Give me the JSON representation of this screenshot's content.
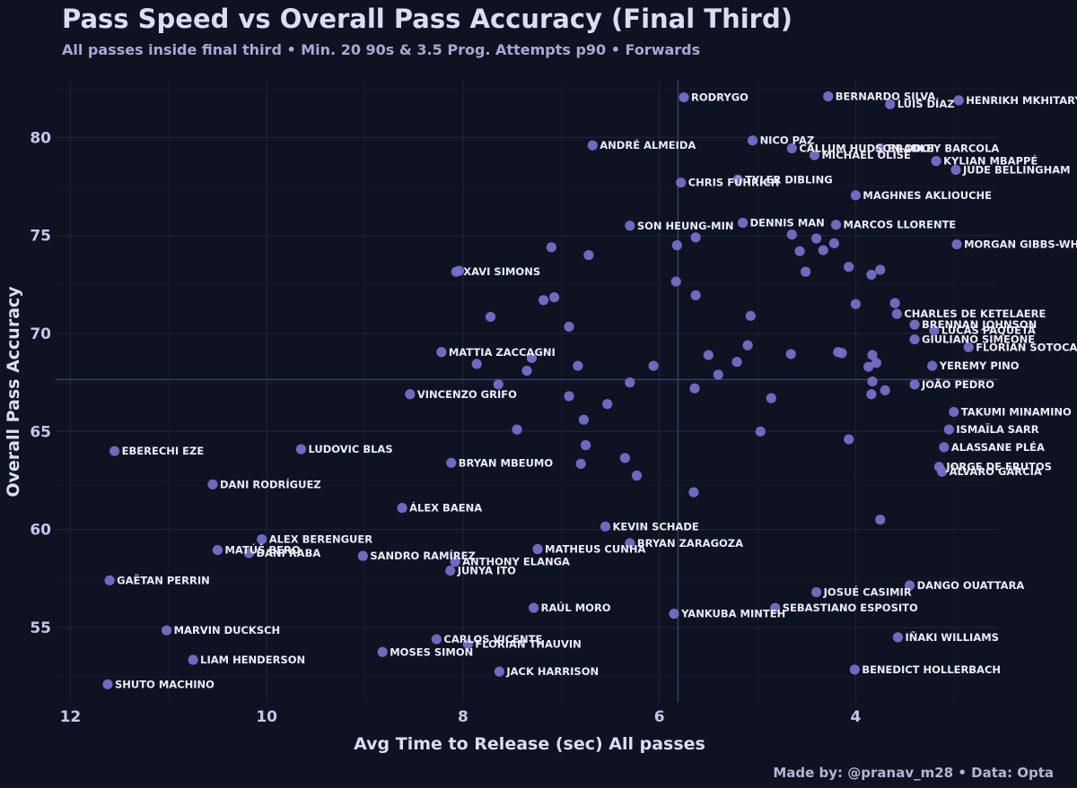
{
  "header": {
    "title": "Pass Speed vs Overall Pass Accuracy (Final Third)",
    "subtitle": "All passes inside final third • Min. 20 90s & 3.5 Prog. Attempts p90 • Forwards"
  },
  "footer": {
    "credit": "Made by: @pranav_m28  •  Data: Opta"
  },
  "colors": {
    "background": "#0f1220",
    "point": "#7b6fcf",
    "grid": "#1c2236",
    "reference_line": "#33405e",
    "text": "#dcdcf5"
  },
  "chart_data": {
    "type": "scatter",
    "xlabel": "Avg Time to Release (sec) All passes",
    "ylabel": "Overall Pass Accuracy",
    "x_reversed": true,
    "xlim": [
      12.15,
      2.55
    ],
    "ylim": [
      51.2,
      82.9
    ],
    "xticks": [
      12,
      10,
      8,
      6,
      4
    ],
    "yticks": [
      55,
      60,
      65,
      70,
      75,
      80
    ],
    "grid": true,
    "reference_lines": {
      "x": 5.81,
      "y": 67.65
    },
    "points": [
      {
        "x": 5.75,
        "y": 82.05,
        "label": "RODRYGO"
      },
      {
        "x": 4.28,
        "y": 82.1,
        "label": "BERNARDO SILVA"
      },
      {
        "x": 3.65,
        "y": 81.7,
        "label": "LUIS DÍAZ"
      },
      {
        "x": 2.95,
        "y": 81.9,
        "label": "HENRIKH MKHITARYAN"
      },
      {
        "x": 5.05,
        "y": 79.85,
        "label": "NICO PAZ"
      },
      {
        "x": 4.65,
        "y": 79.45,
        "label": "CALLUM HUDSON-ODOI"
      },
      {
        "x": 3.75,
        "y": 79.45,
        "label": "BRADLEY BARCOLA"
      },
      {
        "x": 4.42,
        "y": 79.1,
        "label": "MICHAEL OLISE"
      },
      {
        "x": 6.68,
        "y": 79.6,
        "label": "ANDRÉ ALMEIDA"
      },
      {
        "x": 3.18,
        "y": 78.8,
        "label": "KYLIAN MBAPPÉ"
      },
      {
        "x": 2.98,
        "y": 78.35,
        "label": "JUDE BELLINGHAM"
      },
      {
        "x": 5.78,
        "y": 77.7,
        "label": "CHRIS FÜHRICH"
      },
      {
        "x": 5.2,
        "y": 77.85,
        "label": "TYLER DIBLING"
      },
      {
        "x": 4.0,
        "y": 77.05,
        "label": "MAGHNES AKLIOUCHE"
      },
      {
        "x": 6.3,
        "y": 75.5,
        "label": "SON HEUNG-MIN"
      },
      {
        "x": 5.15,
        "y": 75.65,
        "label": "DENNIS MAN"
      },
      {
        "x": 4.2,
        "y": 75.55,
        "label": "MARCOS LLORENTE"
      },
      {
        "x": 2.97,
        "y": 74.55,
        "label": "MORGAN GIBBS-WHITE"
      },
      {
        "x": 8.07,
        "y": 73.15,
        "label": "XAVI SIMONS"
      },
      {
        "x": 3.58,
        "y": 71.0,
        "label": "CHARLES DE KETELAERE"
      },
      {
        "x": 3.4,
        "y": 70.45,
        "label": "BRENNAN JOHNSON"
      },
      {
        "x": 3.2,
        "y": 70.15,
        "label": "LUCAS PAQUETÁ"
      },
      {
        "x": 3.4,
        "y": 69.7,
        "label": "GIULIANO SIMEONE"
      },
      {
        "x": 2.85,
        "y": 69.3,
        "label": "FLORIAN SOTOCA"
      },
      {
        "x": 8.22,
        "y": 69.05,
        "label": "MATTIA ZACCAGNI"
      },
      {
        "x": 3.22,
        "y": 68.35,
        "label": "YEREMY PINO"
      },
      {
        "x": 3.4,
        "y": 67.4,
        "label": "JOÃO PEDRO"
      },
      {
        "x": 8.54,
        "y": 66.9,
        "label": "VINCENZO GRIFO"
      },
      {
        "x": 3.0,
        "y": 66.0,
        "label": "TAKUMI MINAMINO"
      },
      {
        "x": 3.05,
        "y": 65.1,
        "label": "ISMAÏLA SARR"
      },
      {
        "x": 3.1,
        "y": 64.2,
        "label": "ALASSANE PLÉA"
      },
      {
        "x": 11.55,
        "y": 64.0,
        "label": "EBERECHI EZE"
      },
      {
        "x": 9.65,
        "y": 64.1,
        "label": "LUDOVIC BLAS"
      },
      {
        "x": 8.12,
        "y": 63.4,
        "label": "BRYAN MBEUMO"
      },
      {
        "x": 3.15,
        "y": 63.2,
        "label": "JORGE DE FRUTOS"
      },
      {
        "x": 3.12,
        "y": 62.95,
        "label": "ÁLVARO GARCÍA"
      },
      {
        "x": 10.55,
        "y": 62.3,
        "label": "DANI RODRÍGUEZ"
      },
      {
        "x": 8.62,
        "y": 61.1,
        "label": "ÁLEX BAENA"
      },
      {
        "x": 6.55,
        "y": 60.15,
        "label": "KEVIN SCHADE"
      },
      {
        "x": 10.05,
        "y": 59.5,
        "label": "ALEX BERENGUER"
      },
      {
        "x": 6.3,
        "y": 59.3,
        "label": "BRYAN ZARAGOZA"
      },
      {
        "x": 7.24,
        "y": 59.0,
        "label": "MATHEUS CUNHA"
      },
      {
        "x": 10.5,
        "y": 58.95,
        "label": "MATÚŠ BERO"
      },
      {
        "x": 10.18,
        "y": 58.8,
        "label": "DANI RABA"
      },
      {
        "x": 9.02,
        "y": 58.65,
        "label": "SANDRO RAMÍREZ"
      },
      {
        "x": 8.08,
        "y": 58.35,
        "label": "ANTHONY ELANGA"
      },
      {
        "x": 8.13,
        "y": 57.9,
        "label": "JUNYA ITO"
      },
      {
        "x": 11.6,
        "y": 57.4,
        "label": "GAËTAN PERRIN"
      },
      {
        "x": 3.45,
        "y": 57.15,
        "label": "DANGO OUATTARA"
      },
      {
        "x": 4.4,
        "y": 56.8,
        "label": "JOSUÉ CASIMIR"
      },
      {
        "x": 7.28,
        "y": 56.0,
        "label": "RAÚL MORO"
      },
      {
        "x": 4.82,
        "y": 56.0,
        "label": "SEBASTIANO ESPOSITO"
      },
      {
        "x": 5.85,
        "y": 55.7,
        "label": "YANKUBA MINTEH"
      },
      {
        "x": 11.02,
        "y": 54.85,
        "label": "MARVIN DUCKSCH"
      },
      {
        "x": 8.27,
        "y": 54.4,
        "label": "CARLOS VICENTE"
      },
      {
        "x": 7.95,
        "y": 54.15,
        "label": "FLORIAN THAUVIN"
      },
      {
        "x": 3.57,
        "y": 54.5,
        "label": "IÑAKI WILLIAMS"
      },
      {
        "x": 8.82,
        "y": 53.75,
        "label": "MOSES SIMON"
      },
      {
        "x": 10.75,
        "y": 53.35,
        "label": "LIAM HENDERSON"
      },
      {
        "x": 7.63,
        "y": 52.75,
        "label": "JACK HARRISON"
      },
      {
        "x": 4.01,
        "y": 52.85,
        "label": "BENEDICT HOLLERBACH"
      },
      {
        "x": 11.62,
        "y": 52.1,
        "label": "SHUTO MACHINO"
      },
      {
        "x": 8.04,
        "y": 73.2
      },
      {
        "x": 7.1,
        "y": 74.4
      },
      {
        "x": 6.72,
        "y": 74.0
      },
      {
        "x": 5.82,
        "y": 74.5
      },
      {
        "x": 5.63,
        "y": 74.9
      },
      {
        "x": 4.65,
        "y": 75.05
      },
      {
        "x": 4.4,
        "y": 74.85
      },
      {
        "x": 4.57,
        "y": 74.2
      },
      {
        "x": 4.33,
        "y": 74.25
      },
      {
        "x": 4.22,
        "y": 74.6
      },
      {
        "x": 4.51,
        "y": 73.15
      },
      {
        "x": 4.07,
        "y": 73.4
      },
      {
        "x": 3.84,
        "y": 73.0
      },
      {
        "x": 3.75,
        "y": 73.25
      },
      {
        "x": 5.83,
        "y": 72.65
      },
      {
        "x": 7.07,
        "y": 71.85
      },
      {
        "x": 7.18,
        "y": 71.7
      },
      {
        "x": 5.63,
        "y": 71.95
      },
      {
        "x": 7.72,
        "y": 70.85
      },
      {
        "x": 6.92,
        "y": 70.35
      },
      {
        "x": 5.07,
        "y": 70.9
      },
      {
        "x": 4.0,
        "y": 71.5
      },
      {
        "x": 3.6,
        "y": 71.55
      },
      {
        "x": 5.1,
        "y": 69.4
      },
      {
        "x": 5.5,
        "y": 68.9
      },
      {
        "x": 4.66,
        "y": 68.95
      },
      {
        "x": 4.18,
        "y": 69.05
      },
      {
        "x": 4.14,
        "y": 69.0
      },
      {
        "x": 3.83,
        "y": 68.9
      },
      {
        "x": 3.79,
        "y": 68.5
      },
      {
        "x": 3.87,
        "y": 68.3
      },
      {
        "x": 7.3,
        "y": 68.75
      },
      {
        "x": 7.86,
        "y": 68.45
      },
      {
        "x": 6.83,
        "y": 68.35
      },
      {
        "x": 5.21,
        "y": 68.55
      },
      {
        "x": 6.06,
        "y": 68.35
      },
      {
        "x": 7.35,
        "y": 68.1
      },
      {
        "x": 5.4,
        "y": 67.9
      },
      {
        "x": 6.3,
        "y": 67.5
      },
      {
        "x": 7.64,
        "y": 67.4
      },
      {
        "x": 3.83,
        "y": 67.55
      },
      {
        "x": 5.64,
        "y": 67.2
      },
      {
        "x": 3.7,
        "y": 67.1
      },
      {
        "x": 3.84,
        "y": 66.9
      },
      {
        "x": 6.92,
        "y": 66.8
      },
      {
        "x": 4.86,
        "y": 66.7
      },
      {
        "x": 6.53,
        "y": 66.4
      },
      {
        "x": 6.77,
        "y": 65.6
      },
      {
        "x": 7.45,
        "y": 65.1
      },
      {
        "x": 4.97,
        "y": 65.0
      },
      {
        "x": 4.07,
        "y": 64.6
      },
      {
        "x": 6.75,
        "y": 64.3
      },
      {
        "x": 6.35,
        "y": 63.65
      },
      {
        "x": 6.8,
        "y": 63.35
      },
      {
        "x": 6.23,
        "y": 62.75
      },
      {
        "x": 5.65,
        "y": 61.9
      },
      {
        "x": 3.75,
        "y": 60.5
      }
    ]
  }
}
